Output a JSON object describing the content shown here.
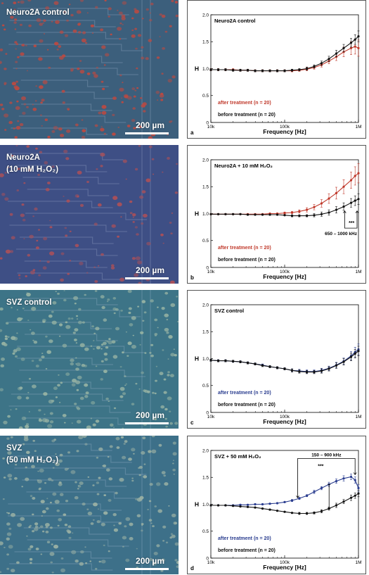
{
  "micro_panels": [
    {
      "label_lines": [
        "Neuro2A control"
      ],
      "scale_label": "200 µm",
      "tint": "#3c5f7c",
      "cells": "#b84a43",
      "density": 220
    },
    {
      "label_lines": [
        "Neuro2A",
        "(10 mM H₂O₂)"
      ],
      "scale_label": "200 µm",
      "tint": "#3e4f85",
      "cells": "#a8505a",
      "density": 120
    },
    {
      "label_lines": [
        "SVZ control"
      ],
      "scale_label": "200 µm",
      "tint": "#3d7487",
      "cells": "#93b0a2",
      "density": 260
    },
    {
      "label_lines": [
        "SVZ",
        "(50 mM H₂O₂)"
      ],
      "scale_label": "200 µm",
      "tint": "#3d7089",
      "cells": "#97aea3",
      "density": 240
    }
  ],
  "chart_data": [
    {
      "type": "line",
      "panel_letter": "a",
      "title": "Neuro2A control",
      "xlabel": "Frequency [Hz]",
      "ylabel": "H",
      "xscale": "log",
      "xlim": [
        10000,
        1000000
      ],
      "ylim": [
        0,
        2.0
      ],
      "xticks": [
        {
          "v": 10000,
          "label": "10k"
        },
        {
          "v": 100000,
          "label": "100k"
        },
        {
          "v": 1000000,
          "label": "1M"
        }
      ],
      "yticks": [
        0,
        0.5,
        1.0,
        1.5,
        2.0
      ],
      "ytick_labels": [
        "0",
        "0.5",
        "1.0",
        "1.5",
        "2.0"
      ],
      "legend": [
        {
          "label": "after treatment (n = 20)",
          "color": "#c0392b"
        },
        {
          "label": "before treatment (n = 20)",
          "color": "#111111"
        }
      ],
      "series": [
        {
          "color": "#c0392b",
          "x": [
            10000,
            12600,
            15800,
            20000,
            25100,
            31600,
            39800,
            50100,
            63100,
            79400,
            100000,
            126000,
            158000,
            200000,
            251000,
            316000,
            398000,
            501000,
            631000,
            794000,
            900000,
            1000000
          ],
          "y": [
            0.98,
            0.98,
            0.98,
            0.98,
            0.97,
            0.97,
            0.96,
            0.96,
            0.96,
            0.96,
            0.96,
            0.96,
            0.97,
            0.99,
            1.02,
            1.07,
            1.14,
            1.22,
            1.31,
            1.38,
            1.41,
            1.38
          ],
          "err": [
            0.02,
            0.02,
            0.02,
            0.02,
            0.02,
            0.02,
            0.02,
            0.02,
            0.02,
            0.02,
            0.02,
            0.02,
            0.02,
            0.03,
            0.03,
            0.04,
            0.05,
            0.07,
            0.09,
            0.12,
            0.14,
            0.15
          ]
        },
        {
          "color": "#111111",
          "x": [
            10000,
            12600,
            15800,
            20000,
            25100,
            31600,
            39800,
            50100,
            63100,
            79400,
            100000,
            126000,
            158000,
            200000,
            251000,
            316000,
            398000,
            501000,
            631000,
            794000,
            900000,
            1000000
          ],
          "y": [
            0.98,
            0.98,
            0.98,
            0.97,
            0.97,
            0.97,
            0.96,
            0.96,
            0.96,
            0.96,
            0.96,
            0.97,
            0.98,
            1.0,
            1.04,
            1.1,
            1.18,
            1.28,
            1.38,
            1.48,
            1.54,
            1.6
          ],
          "err": [
            0.02,
            0.02,
            0.02,
            0.02,
            0.02,
            0.02,
            0.02,
            0.02,
            0.02,
            0.02,
            0.02,
            0.02,
            0.02,
            0.03,
            0.03,
            0.04,
            0.05,
            0.06,
            0.07,
            0.08,
            0.09,
            0.1
          ]
        }
      ]
    },
    {
      "type": "line",
      "panel_letter": "b",
      "title": "Neuro2A + 10 mM H₂O₂",
      "xlabel": "Frequency [Hz]",
      "ylabel": "H",
      "xscale": "log",
      "xlim": [
        10000,
        1000000
      ],
      "ylim": [
        0,
        2.0
      ],
      "xticks": [
        {
          "v": 10000,
          "label": "10k"
        },
        {
          "v": 100000,
          "label": "100k"
        },
        {
          "v": 1000000,
          "label": "1M"
        }
      ],
      "yticks": [
        0,
        0.5,
        1.0,
        1.5,
        2.0
      ],
      "ytick_labels": [
        "0",
        "0.5",
        "1.0",
        "1.5",
        "2.0"
      ],
      "legend": [
        {
          "label": "after treatment (n = 20)",
          "color": "#c0392b"
        },
        {
          "label": "before treatment (n = 20)",
          "color": "#111111"
        }
      ],
      "annotations": {
        "range_label": "650 – 1000 kHz",
        "significance": "***",
        "range": [
          650000,
          1000000
        ]
      },
      "series": [
        {
          "color": "#c0392b",
          "x": [
            10000,
            12600,
            15800,
            20000,
            25100,
            31600,
            39800,
            50100,
            63100,
            79400,
            100000,
            126000,
            158000,
            200000,
            251000,
            316000,
            398000,
            501000,
            631000,
            794000,
            900000,
            1000000
          ],
          "y": [
            0.99,
            0.99,
            0.99,
            0.99,
            0.99,
            0.99,
            0.99,
            0.99,
            1.0,
            1.0,
            1.01,
            1.02,
            1.04,
            1.07,
            1.12,
            1.19,
            1.28,
            1.38,
            1.5,
            1.62,
            1.7,
            1.75
          ],
          "err": [
            0.01,
            0.01,
            0.01,
            0.01,
            0.01,
            0.01,
            0.01,
            0.01,
            0.01,
            0.01,
            0.02,
            0.02,
            0.03,
            0.04,
            0.05,
            0.07,
            0.09,
            0.11,
            0.13,
            0.15,
            0.17,
            0.18
          ]
        },
        {
          "color": "#111111",
          "x": [
            10000,
            12600,
            15800,
            20000,
            25100,
            31600,
            39800,
            50100,
            63100,
            79400,
            100000,
            126000,
            158000,
            200000,
            251000,
            316000,
            398000,
            501000,
            631000,
            794000,
            900000,
            1000000
          ],
          "y": [
            0.99,
            0.99,
            0.99,
            0.99,
            0.99,
            0.98,
            0.98,
            0.98,
            0.98,
            0.98,
            0.97,
            0.96,
            0.96,
            0.96,
            0.97,
            0.99,
            1.02,
            1.07,
            1.13,
            1.2,
            1.24,
            1.27
          ],
          "err": [
            0.01,
            0.01,
            0.01,
            0.01,
            0.01,
            0.01,
            0.01,
            0.01,
            0.01,
            0.01,
            0.01,
            0.02,
            0.02,
            0.02,
            0.03,
            0.04,
            0.05,
            0.06,
            0.07,
            0.08,
            0.09,
            0.1
          ]
        }
      ]
    },
    {
      "type": "line",
      "panel_letter": "c",
      "title": "SVZ control",
      "xlabel": "Frequency [Hz]",
      "ylabel": "H",
      "xscale": "log",
      "xlim": [
        10000,
        1000000
      ],
      "ylim": [
        0,
        2.0
      ],
      "xticks": [
        {
          "v": 10000,
          "label": "10k"
        },
        {
          "v": 100000,
          "label": "100k"
        },
        {
          "v": 1000000,
          "label": "1M"
        }
      ],
      "yticks": [
        0,
        0.5,
        1.0,
        1.5,
        2.0
      ],
      "ytick_labels": [
        "0",
        "0.5",
        "1.0",
        "1.5",
        "2.0"
      ],
      "legend": [
        {
          "label": "after treatment (n = 20)",
          "color": "#2a3d8f"
        },
        {
          "label": "before treatment (n = 20)",
          "color": "#111111"
        }
      ],
      "series": [
        {
          "color": "#2a3d8f",
          "x": [
            10000,
            12600,
            15800,
            20000,
            25100,
            31600,
            39800,
            50100,
            63100,
            79400,
            100000,
            126000,
            158000,
            200000,
            251000,
            316000,
            398000,
            501000,
            631000,
            794000,
            900000,
            1000000
          ],
          "y": [
            0.97,
            0.96,
            0.96,
            0.95,
            0.94,
            0.92,
            0.9,
            0.88,
            0.85,
            0.83,
            0.81,
            0.78,
            0.77,
            0.76,
            0.76,
            0.78,
            0.82,
            0.88,
            0.95,
            1.05,
            1.12,
            1.17
          ],
          "err": [
            0.02,
            0.02,
            0.02,
            0.02,
            0.02,
            0.02,
            0.02,
            0.02,
            0.02,
            0.02,
            0.02,
            0.03,
            0.03,
            0.03,
            0.03,
            0.04,
            0.04,
            0.05,
            0.06,
            0.08,
            0.09,
            0.1
          ]
        },
        {
          "color": "#111111",
          "x": [
            10000,
            12600,
            15800,
            20000,
            25100,
            31600,
            39800,
            50100,
            63100,
            79400,
            100000,
            126000,
            158000,
            200000,
            251000,
            316000,
            398000,
            501000,
            631000,
            794000,
            900000,
            1000000
          ],
          "y": [
            0.97,
            0.96,
            0.96,
            0.95,
            0.94,
            0.92,
            0.9,
            0.87,
            0.85,
            0.83,
            0.81,
            0.78,
            0.76,
            0.75,
            0.75,
            0.77,
            0.81,
            0.87,
            0.94,
            1.03,
            1.09,
            1.14
          ],
          "err": [
            0.02,
            0.02,
            0.02,
            0.02,
            0.02,
            0.02,
            0.02,
            0.02,
            0.02,
            0.02,
            0.02,
            0.03,
            0.03,
            0.03,
            0.03,
            0.04,
            0.04,
            0.05,
            0.06,
            0.07,
            0.08,
            0.09
          ]
        }
      ]
    },
    {
      "type": "line",
      "panel_letter": "d",
      "title": "SVZ + 50 mM H₂O₂",
      "xlabel": "Frequency [Hz]",
      "ylabel": "H",
      "xscale": "log",
      "xlim": [
        10000,
        1000000
      ],
      "ylim": [
        0,
        2.0
      ],
      "xticks": [
        {
          "v": 10000,
          "label": "10k"
        },
        {
          "v": 100000,
          "label": "100k"
        },
        {
          "v": 1000000,
          "label": "1M"
        }
      ],
      "yticks": [
        0,
        0.5,
        1.0,
        1.5,
        2.0
      ],
      "ytick_labels": [
        "0",
        "0.5",
        "1.0",
        "1.5",
        "2.0"
      ],
      "legend": [
        {
          "label": "after treatment (n = 20)",
          "color": "#2a3d8f"
        },
        {
          "label": "before treatment (n = 20)",
          "color": "#111111"
        }
      ],
      "annotations": {
        "range_label": "150 – 900 kHz",
        "significance": "***",
        "range": [
          150000,
          900000
        ]
      },
      "series": [
        {
          "color": "#2a3d8f",
          "x": [
            10000,
            12600,
            15800,
            20000,
            25100,
            31600,
            39800,
            50100,
            63100,
            79400,
            100000,
            126000,
            158000,
            200000,
            251000,
            316000,
            398000,
            501000,
            631000,
            794000,
            900000,
            1000000
          ],
          "y": [
            0.98,
            0.98,
            0.98,
            0.98,
            0.99,
            0.99,
            1.0,
            1.0,
            1.01,
            1.02,
            1.04,
            1.07,
            1.11,
            1.16,
            1.23,
            1.3,
            1.37,
            1.43,
            1.48,
            1.51,
            1.45,
            1.3
          ],
          "err": [
            0.01,
            0.01,
            0.01,
            0.01,
            0.01,
            0.01,
            0.01,
            0.01,
            0.01,
            0.01,
            0.01,
            0.02,
            0.02,
            0.02,
            0.03,
            0.03,
            0.04,
            0.04,
            0.05,
            0.05,
            0.06,
            0.07
          ]
        },
        {
          "color": "#111111",
          "x": [
            10000,
            12600,
            15800,
            20000,
            25100,
            31600,
            39800,
            50100,
            63100,
            79400,
            100000,
            126000,
            158000,
            200000,
            251000,
            316000,
            398000,
            501000,
            631000,
            794000,
            900000,
            1000000
          ],
          "y": [
            0.98,
            0.98,
            0.98,
            0.97,
            0.96,
            0.95,
            0.94,
            0.92,
            0.9,
            0.88,
            0.86,
            0.84,
            0.83,
            0.83,
            0.84,
            0.87,
            0.92,
            0.98,
            1.05,
            1.12,
            1.16,
            1.2
          ],
          "err": [
            0.01,
            0.01,
            0.01,
            0.01,
            0.01,
            0.01,
            0.01,
            0.01,
            0.01,
            0.01,
            0.01,
            0.01,
            0.02,
            0.02,
            0.02,
            0.03,
            0.03,
            0.04,
            0.04,
            0.05,
            0.05,
            0.06
          ]
        }
      ]
    }
  ]
}
